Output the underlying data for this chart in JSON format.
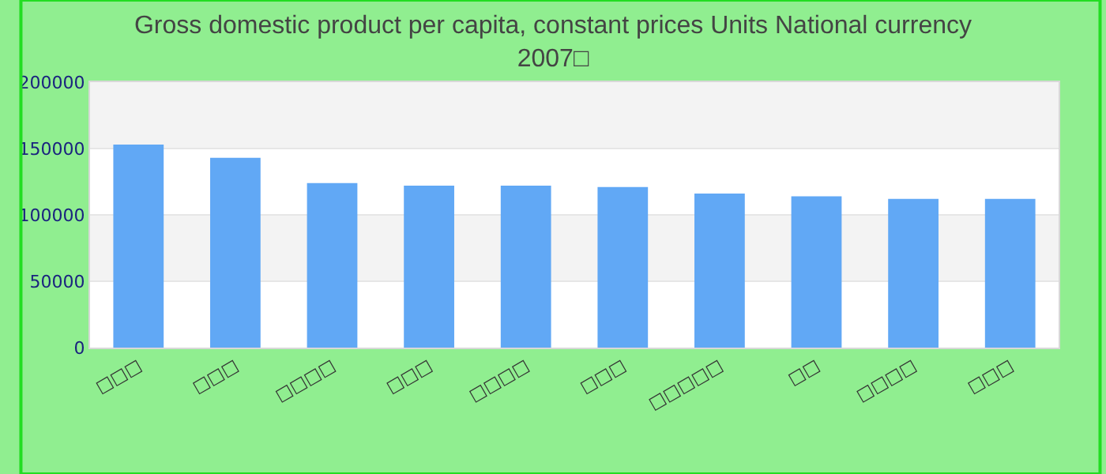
{
  "chart_data": {
    "type": "bar",
    "title": "Gross domestic product per capita, constant prices Units National currency\n2007□",
    "categories": [
      "□□□",
      "□□□",
      "□□□□",
      "□□□",
      "□□□□",
      "□□□",
      "□□□□□",
      "□□",
      "□□□□",
      "□□□"
    ],
    "values": [
      153000,
      143000,
      124000,
      122000,
      122000,
      121000,
      116000,
      114000,
      112000,
      112000
    ],
    "color": "#61a8f5",
    "ylim": [
      0,
      200000
    ],
    "yticks": [
      0,
      50000,
      100000,
      150000,
      200000
    ],
    "grid": true
  }
}
